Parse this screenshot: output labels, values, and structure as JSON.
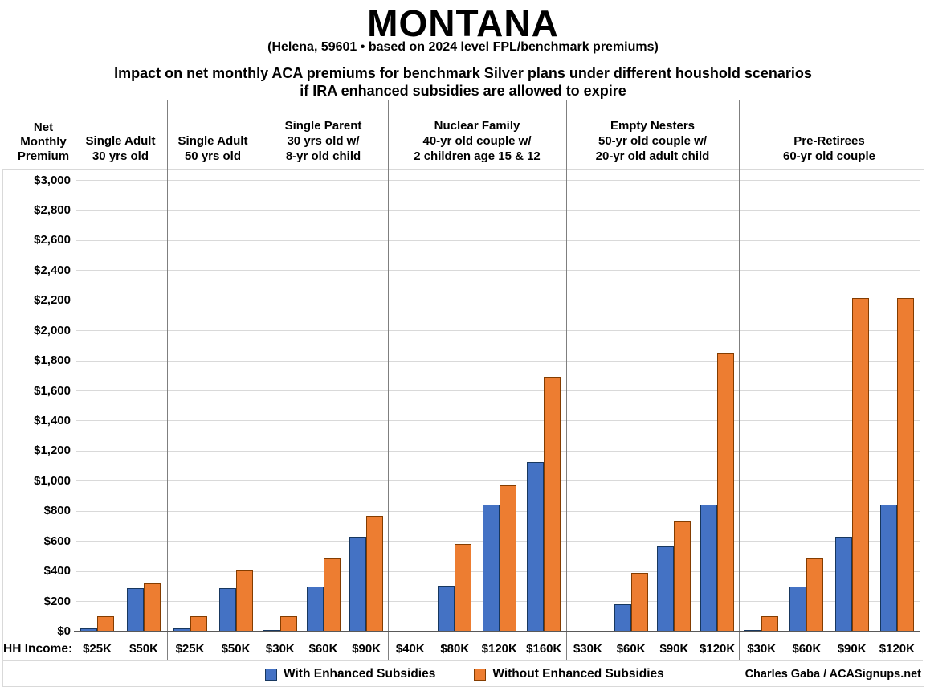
{
  "header": {
    "title": "MONTANA",
    "subtitle": "(Helena, 59601 • based on 2024 level FPL/benchmark premiums)",
    "heading_line1": "Impact on net monthly ACA premiums for benchmark Silver plans under different houshold scenarios",
    "heading_line2": "if IRA enhanced subsidies are allowed to expire"
  },
  "chart_data": {
    "type": "bar",
    "title": "Impact on net monthly ACA premiums for benchmark Silver plans under different houshold scenarios if IRA enhanced subsidies are allowed to expire",
    "y_axis_title_lines": [
      "Net",
      "Monthly",
      "Premium"
    ],
    "x_axis_prefix_label": "HH Income:",
    "ylim": [
      0,
      3000
    ],
    "ytick_step": 200,
    "ytick_labels": [
      "$0",
      "$200",
      "$400",
      "$600",
      "$800",
      "$1,000",
      "$1,200",
      "$1,400",
      "$1,600",
      "$1,800",
      "$2,000",
      "$2,200",
      "$2,400",
      "$2,600",
      "$2,800",
      "$3,000"
    ],
    "grid": true,
    "legend_position": "bottom",
    "series": [
      {
        "name": "With Enhanced Subsidies",
        "color": "#4472C4",
        "border_color": "#17375E"
      },
      {
        "name": "Without Enhanced Subsidies",
        "color": "#ED7D31",
        "border_color": "#833C00"
      }
    ],
    "groups": [
      {
        "header_lines": [
          "Single Adult",
          "30 yrs old"
        ],
        "incomes": [
          "$25K",
          "$50K"
        ],
        "with_enhanced": [
          20,
          290
        ],
        "without_enhanced": [
          100,
          320
        ]
      },
      {
        "header_lines": [
          "Single Adult",
          "50 yrs old"
        ],
        "incomes": [
          "$25K",
          "$50K"
        ],
        "with_enhanced": [
          20,
          290
        ],
        "without_enhanced": [
          100,
          405
        ]
      },
      {
        "header_lines": [
          "Single Parent",
          "30 yrs old w/",
          "8-yr old child"
        ],
        "incomes": [
          "$30K",
          "$60K",
          "$90K"
        ],
        "with_enhanced": [
          5,
          300,
          630
        ],
        "without_enhanced": [
          100,
          485,
          770
        ]
      },
      {
        "header_lines": [
          "Nuclear Family",
          "40-yr old couple w/",
          "2 children age 15 & 12"
        ],
        "incomes": [
          "$40K",
          "$80K",
          "$120K",
          "$160K"
        ],
        "with_enhanced": [
          0,
          305,
          845,
          1130
        ],
        "without_enhanced": [
          0,
          585,
          975,
          1695
        ]
      },
      {
        "header_lines": [
          "Empty Nesters",
          "50-yr old couple w/",
          "20-yr old adult child"
        ],
        "incomes": [
          "$30K",
          "$60K",
          "$90K",
          "$120K"
        ],
        "with_enhanced": [
          0,
          180,
          565,
          845
        ],
        "without_enhanced": [
          0,
          390,
          730,
          1855
        ]
      },
      {
        "header_lines": [
          "Pre-Retirees",
          "60-yr old couple"
        ],
        "incomes": [
          "$30K",
          "$60K",
          "$90K",
          "$120K"
        ],
        "with_enhanced": [
          5,
          300,
          630,
          845
        ],
        "without_enhanced": [
          100,
          485,
          2215,
          2215
        ]
      }
    ],
    "colors": {
      "gridline": "#d9d9d9",
      "divider": "#7f7f7f",
      "baseline": "#595959",
      "chart_border": "#d9d9d9"
    }
  },
  "footer": {
    "credit": "Charles Gaba / ACASignups.net"
  }
}
